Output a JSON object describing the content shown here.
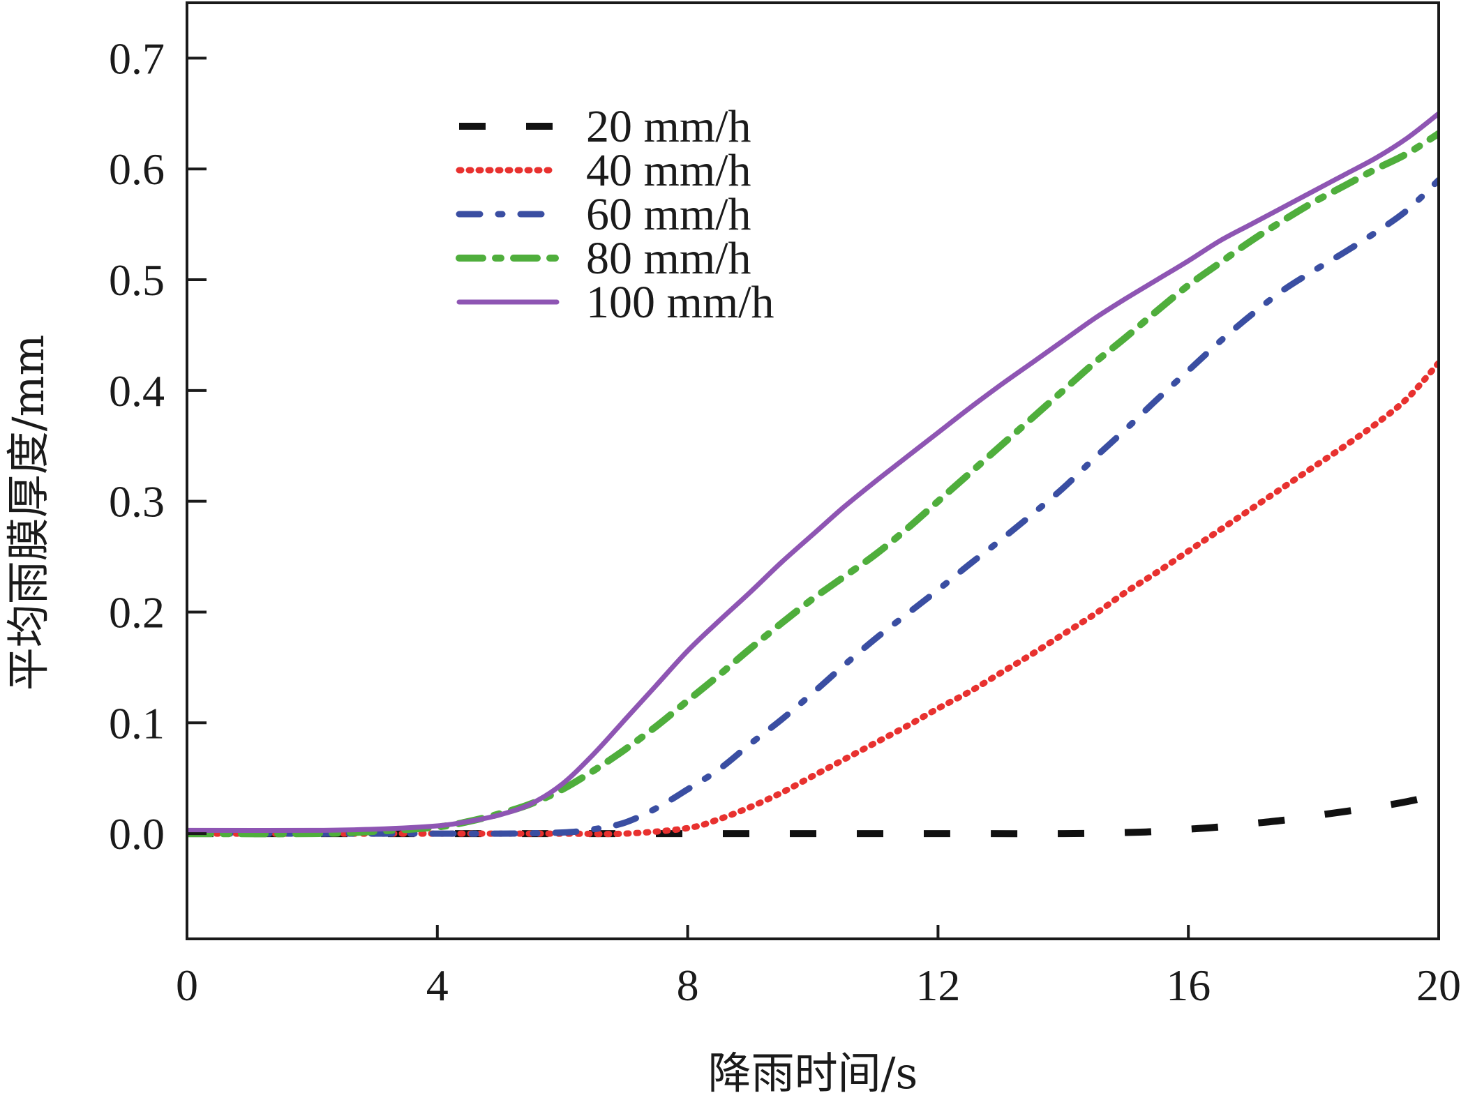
{
  "chart_data": {
    "type": "line",
    "title": "",
    "xlabel": "降雨时间/s",
    "ylabel": "平均雨膜厚度/mm",
    "xlim": [
      0,
      20
    ],
    "ylim": [
      -0.095,
      0.75
    ],
    "x_ticks": [
      {
        "value": 0,
        "label": "0"
      },
      {
        "value": 4,
        "label": "4"
      },
      {
        "value": 8,
        "label": "8"
      },
      {
        "value": 12,
        "label": "12"
      },
      {
        "value": 16,
        "label": "16"
      },
      {
        "value": 20,
        "label": "20"
      }
    ],
    "y_ticks": [
      {
        "value": 0.0,
        "label": "0.0"
      },
      {
        "value": 0.1,
        "label": "0.1"
      },
      {
        "value": 0.2,
        "label": "0.2"
      },
      {
        "value": 0.3,
        "label": "0.3"
      },
      {
        "value": 0.4,
        "label": "0.4"
      },
      {
        "value": 0.5,
        "label": "0.5"
      },
      {
        "value": 0.6,
        "label": "0.6"
      },
      {
        "value": 0.7,
        "label": "0.7"
      }
    ],
    "legend": "upper-left",
    "grid": false,
    "series": [
      {
        "name": "20 mm/h",
        "color": "#111111",
        "dash": "dash",
        "x": [
          0,
          2,
          4,
          6,
          8,
          10,
          12,
          14,
          15,
          15.5,
          16,
          16.5,
          17,
          17.5,
          18,
          18.5,
          19,
          19.5,
          20
        ],
        "y": [
          0,
          0,
          0,
          0,
          0,
          0,
          0,
          0,
          0.001,
          0.002,
          0.004,
          0.006,
          0.009,
          0.012,
          0.016,
          0.02,
          0.024,
          0.029,
          0.035
        ]
      },
      {
        "name": "40 mm/h",
        "color": "#e8312f",
        "dash": "dot",
        "x": [
          0,
          2,
          4,
          6,
          7,
          8,
          8.5,
          9,
          9.5,
          10,
          10.5,
          11,
          11.5,
          12,
          12.5,
          13,
          13.5,
          14,
          14.5,
          15,
          15.5,
          16,
          16.5,
          17,
          17.5,
          18,
          18.5,
          19,
          19.5,
          20
        ],
        "y": [
          0,
          0,
          0,
          0,
          0,
          0.005,
          0.013,
          0.024,
          0.037,
          0.052,
          0.067,
          0.082,
          0.097,
          0.113,
          0.128,
          0.145,
          0.162,
          0.18,
          0.198,
          0.218,
          0.236,
          0.255,
          0.274,
          0.293,
          0.312,
          0.331,
          0.35,
          0.37,
          0.393,
          0.425
        ]
      },
      {
        "name": "60 mm/h",
        "color": "#3a4ea2",
        "dash": "dashdot",
        "x": [
          0,
          2,
          4,
          5,
          6,
          6.5,
          7,
          7.5,
          8,
          8.5,
          9,
          9.5,
          10,
          10.5,
          11,
          11.5,
          12,
          12.5,
          13,
          13.5,
          14,
          14.5,
          15,
          15.5,
          16,
          16.5,
          17,
          17.5,
          18,
          18.5,
          19,
          19.5,
          20
        ],
        "y": [
          0,
          0,
          0,
          0,
          0.001,
          0.004,
          0.01,
          0.023,
          0.04,
          0.058,
          0.081,
          0.103,
          0.127,
          0.152,
          0.176,
          0.198,
          0.22,
          0.243,
          0.265,
          0.288,
          0.312,
          0.339,
          0.365,
          0.392,
          0.418,
          0.444,
          0.468,
          0.49,
          0.508,
          0.525,
          0.543,
          0.563,
          0.59
        ]
      },
      {
        "name": "80 mm/h",
        "color": "#4fae3c",
        "dash": "dashdotdot",
        "x": [
          0,
          2,
          3,
          4,
          4.5,
          5,
          5.5,
          6,
          6.5,
          7,
          7.5,
          8,
          8.5,
          9,
          9.5,
          10,
          10.5,
          11,
          11.5,
          12,
          12.5,
          13,
          13.5,
          14,
          14.5,
          15,
          15.5,
          16,
          16.5,
          17,
          17.5,
          18,
          18.5,
          19,
          19.5,
          20
        ],
        "y": [
          0,
          0,
          0.002,
          0.006,
          0.011,
          0.018,
          0.027,
          0.04,
          0.057,
          0.076,
          0.097,
          0.12,
          0.143,
          0.167,
          0.19,
          0.212,
          0.232,
          0.252,
          0.275,
          0.3,
          0.325,
          0.35,
          0.375,
          0.4,
          0.425,
          0.448,
          0.472,
          0.495,
          0.515,
          0.535,
          0.553,
          0.57,
          0.585,
          0.6,
          0.614,
          0.632
        ]
      },
      {
        "name": "100 mm/h",
        "color": "#8e55b3",
        "dash": "solid",
        "x": [
          0,
          2,
          3,
          4,
          4.5,
          5,
          5.5,
          6,
          6.5,
          7,
          7.5,
          8,
          8.5,
          9,
          9.5,
          10,
          10.5,
          11,
          11.5,
          12,
          12.5,
          13,
          13.5,
          14,
          14.5,
          15,
          15.5,
          16,
          16.5,
          17,
          17.5,
          18,
          18.5,
          19,
          19.5,
          20
        ],
        "y": [
          0.003,
          0.003,
          0.004,
          0.007,
          0.011,
          0.017,
          0.027,
          0.045,
          0.072,
          0.103,
          0.134,
          0.165,
          0.192,
          0.218,
          0.245,
          0.27,
          0.295,
          0.318,
          0.34,
          0.362,
          0.384,
          0.405,
          0.425,
          0.445,
          0.465,
          0.483,
          0.5,
          0.517,
          0.535,
          0.55,
          0.565,
          0.58,
          0.595,
          0.61,
          0.628,
          0.65
        ]
      }
    ]
  }
}
